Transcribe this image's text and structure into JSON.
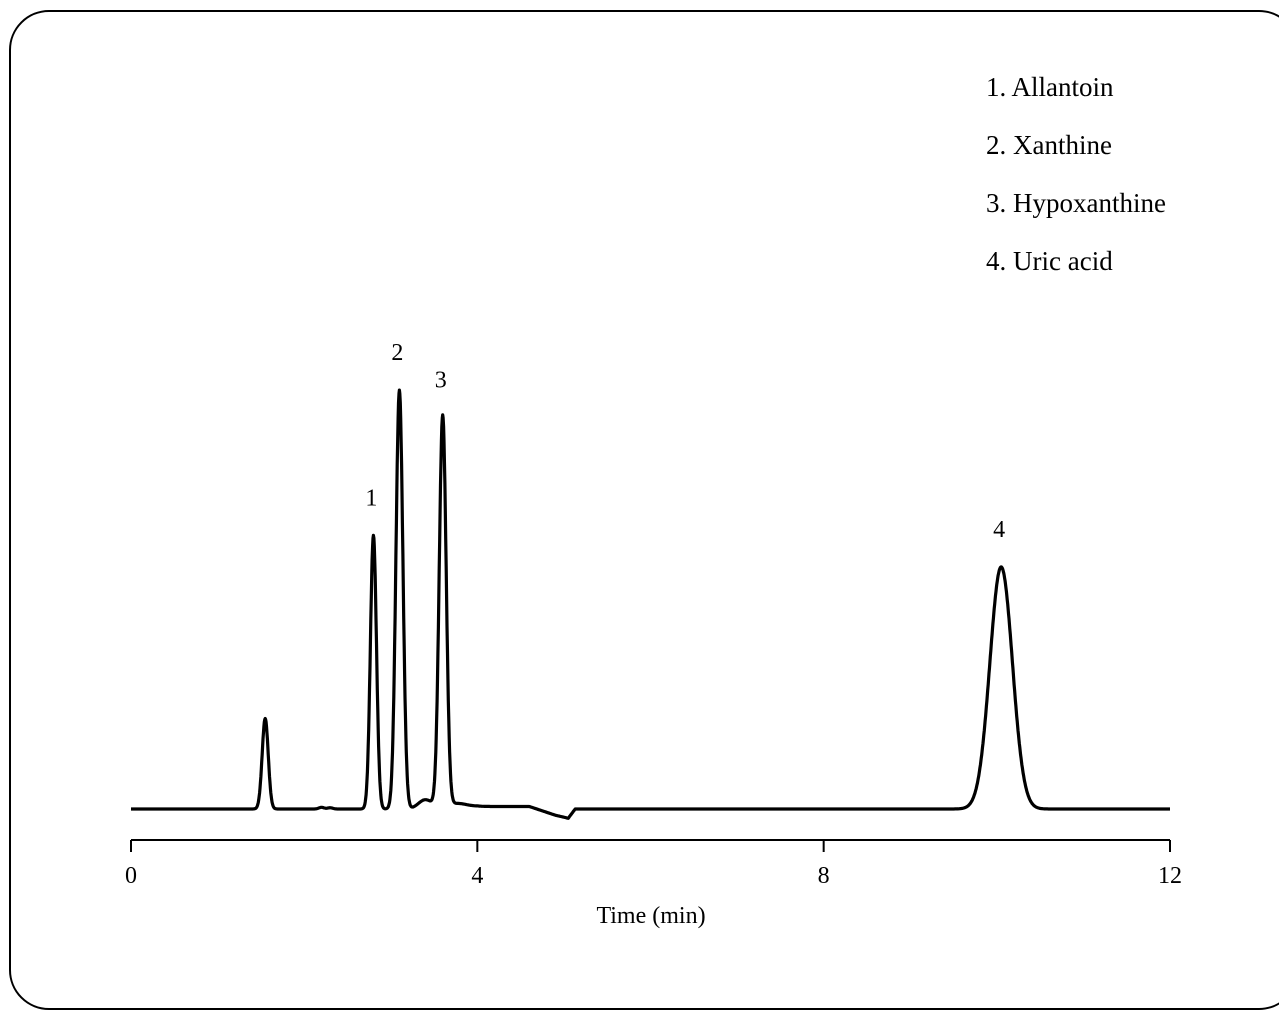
{
  "chart_data": {
    "type": "line",
    "xlabel": "Time (min)",
    "ylabel": "",
    "xlim": [
      0,
      12
    ],
    "ylim": [
      0,
      100
    ],
    "xticks": [
      0,
      4,
      8,
      12
    ],
    "grid": false,
    "legend": {
      "placement": "top-right",
      "entries": [
        "1. Allantoin",
        "2. Xanthine",
        "3. Hypoxanthine",
        "4. Uric acid"
      ]
    },
    "peaks": [
      {
        "label": "",
        "x": 1.55,
        "height": 21.5,
        "width": 0.035
      },
      {
        "label": "1",
        "x": 2.8,
        "height": 65,
        "width": 0.035
      },
      {
        "label": "2",
        "x": 3.1,
        "height": 99.5,
        "width": 0.04
      },
      {
        "label": "3",
        "x": 3.6,
        "height": 93,
        "width": 0.04
      },
      {
        "label": "4",
        "x": 10.05,
        "height": 57.5,
        "width": 0.13
      }
    ],
    "baseline_dip": {
      "x": 5.05,
      "depth": -2.2
    }
  }
}
